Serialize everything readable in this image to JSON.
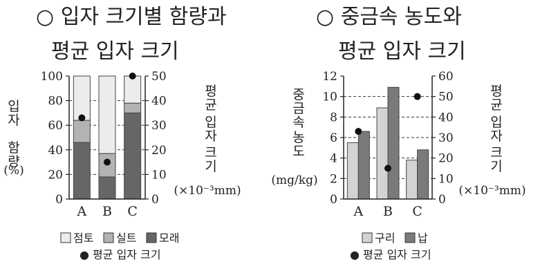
{
  "chart_data": [
    {
      "type": "bar",
      "stacked": true,
      "title_lines": [
        "○ 입자 크기별 함량과",
        "평균 입자 크기"
      ],
      "categories": [
        "A",
        "B",
        "C"
      ],
      "ylabel_left": [
        "입자",
        "함량",
        "(%)"
      ],
      "ylabel_right": [
        "평균",
        "입자",
        "크기"
      ],
      "ylabel_right_unit": "(×10⁻³mm)",
      "ylim_left": [
        0,
        100
      ],
      "yticks_left": [
        "0",
        "20",
        "40",
        "60",
        "80",
        "100"
      ],
      "ylim_right": [
        0,
        50
      ],
      "yticks_right": [
        "0",
        "10",
        "20",
        "30",
        "40",
        "50"
      ],
      "grid": "dashed",
      "series": [
        {
          "name": "모래",
          "color": "#666666",
          "values": [
            46,
            18,
            70
          ]
        },
        {
          "name": "실트",
          "color": "#b3b3b3",
          "values": [
            18,
            19,
            8
          ]
        },
        {
          "name": "점토",
          "color": "#ececec",
          "values": [
            36,
            63,
            22
          ]
        }
      ],
      "stack_order_bottom_to_top": [
        "모래",
        "실트",
        "점토"
      ],
      "legend_boxes": [
        "점토",
        "실트",
        "모래"
      ],
      "marker_series": {
        "name": "평균 입자 크기",
        "legend_label": "● 평균 입자 크기",
        "values": [
          33,
          15,
          50
        ]
      }
    },
    {
      "type": "bar",
      "title_lines": [
        "○ 중금속 농도와",
        "평균 입자 크기"
      ],
      "categories": [
        "A",
        "B",
        "C"
      ],
      "ylabel_left": [
        "중금속",
        "농도"
      ],
      "ylabel_left_unit": "(mg/kg)",
      "ylabel_right": [
        "평균",
        "입자",
        "크기"
      ],
      "ylabel_right_unit": "(×10⁻³mm)",
      "ylim_left": [
        0,
        12
      ],
      "yticks_left": [
        "0",
        "2",
        "4",
        "6",
        "8",
        "10",
        "12"
      ],
      "ylim_right": [
        0,
        60
      ],
      "yticks_right": [
        "0",
        "10",
        "20",
        "30",
        "40",
        "50",
        "60"
      ],
      "grid": "dashed",
      "series": [
        {
          "name": "구리",
          "color": "#d3d3d3",
          "values": [
            5.5,
            8.9,
            3.8
          ]
        },
        {
          "name": "납",
          "color": "#7a7a7a",
          "values": [
            6.6,
            10.9,
            4.8
          ]
        }
      ],
      "legend_boxes": [
        "구리",
        "납"
      ],
      "marker_series": {
        "name": "평균 입자 크기",
        "legend_label": "● 평균 입자 크기",
        "values": [
          33,
          15,
          50
        ]
      }
    }
  ]
}
